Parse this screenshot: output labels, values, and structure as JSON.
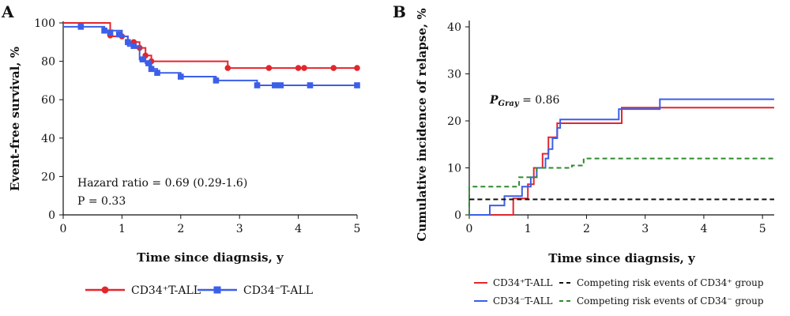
{
  "panel_a": {
    "letter": "A",
    "legend": {
      "red_label": "CD34⁺T-ALL",
      "blue_label": "CD34⁻T-ALL"
    },
    "annotations": {
      "hazard": "Hazard ratio = 0.69 (0.29-1.6)",
      "pvalue": "P = 0.33"
    }
  },
  "panel_b": {
    "letter": "B",
    "pgray_label": "P",
    "pgray_sub": "Gray",
    "pgray_value": " = 0.86",
    "legend": {
      "red_label": "CD34⁺T-ALL",
      "blue_label": "CD34⁻T-ALL",
      "black_label": "Competing risk events of CD34⁺ group",
      "green_label": "Competing risk events of CD34⁻ group"
    }
  },
  "colors": {
    "red": "#e3262d",
    "blue": "#3b5fe8",
    "black": "#111111",
    "green": "#2e8b2e"
  },
  "chart_data": [
    {
      "type": "line",
      "subtype": "kaplan-meier",
      "xlabel": "Time since diagnsis, y",
      "ylabel": "Event-free survival, %",
      "xlim": [
        0,
        5
      ],
      "ylim": [
        0,
        100
      ],
      "xticks": [
        0,
        1,
        2,
        3,
        4,
        5
      ],
      "yticks": [
        0,
        20,
        40,
        60,
        80,
        100
      ],
      "series": [
        {
          "name": "CD34⁺T-ALL",
          "color": "red",
          "steps": [
            [
              0,
              100
            ],
            [
              0.8,
              100
            ],
            [
              0.8,
              93
            ],
            [
              1.1,
              93
            ],
            [
              1.1,
              90
            ],
            [
              1.3,
              90
            ],
            [
              1.3,
              87
            ],
            [
              1.4,
              87
            ],
            [
              1.4,
              83
            ],
            [
              1.5,
              83
            ],
            [
              1.5,
              80
            ],
            [
              2.8,
              80
            ],
            [
              2.8,
              76.5
            ],
            [
              5,
              76.5
            ]
          ],
          "censored": [
            [
              0.8,
              93.5
            ],
            [
              1.0,
              93
            ],
            [
              1.2,
              90
            ],
            [
              1.3,
              87
            ],
            [
              1.4,
              83
            ],
            [
              1.5,
              80
            ],
            [
              2.8,
              76.5
            ],
            [
              3.5,
              76.5
            ],
            [
              4.0,
              76.5
            ],
            [
              4.1,
              76.5
            ],
            [
              4.6,
              76.5
            ],
            [
              5.0,
              76.5
            ]
          ]
        },
        {
          "name": "CD34⁻T-ALL",
          "color": "blue",
          "steps": [
            [
              0,
              98
            ],
            [
              0.7,
              98
            ],
            [
              0.7,
              96
            ],
            [
              1.0,
              96
            ],
            [
              1.0,
              93
            ],
            [
              1.1,
              93
            ],
            [
              1.1,
              88
            ],
            [
              1.3,
              88
            ],
            [
              1.3,
              81
            ],
            [
              1.4,
              81
            ],
            [
              1.4,
              79
            ],
            [
              1.5,
              79
            ],
            [
              1.5,
              76
            ],
            [
              1.6,
              76
            ],
            [
              1.6,
              74
            ],
            [
              2.0,
              74
            ],
            [
              2.0,
              72
            ],
            [
              2.6,
              72
            ],
            [
              2.6,
              70
            ],
            [
              3.3,
              70
            ],
            [
              3.3,
              67.5
            ],
            [
              5,
              67.5
            ]
          ],
          "censored": [
            [
              0.3,
              98
            ],
            [
              0.7,
              96
            ],
            [
              0.8,
              95
            ],
            [
              0.95,
              94
            ],
            [
              1.1,
              90
            ],
            [
              1.2,
              88
            ],
            [
              1.35,
              81
            ],
            [
              1.45,
              79
            ],
            [
              1.5,
              76
            ],
            [
              1.6,
              74
            ],
            [
              2.0,
              72
            ],
            [
              2.6,
              70
            ],
            [
              3.3,
              67.5
            ],
            [
              3.6,
              67.5
            ],
            [
              3.7,
              67.5
            ],
            [
              4.2,
              67.5
            ],
            [
              5.0,
              67.5
            ]
          ]
        }
      ]
    },
    {
      "type": "line",
      "subtype": "cumulative-incidence",
      "xlabel": "Time since diagnsis, y",
      "ylabel": "Cumulative incidence of relapse, %",
      "xlim": [
        0,
        5.2
      ],
      "ylim": [
        0,
        40
      ],
      "xticks": [
        0,
        1,
        2,
        3,
        4,
        5
      ],
      "yticks": [
        0,
        10,
        20,
        30,
        40
      ],
      "series": [
        {
          "name": "CD34⁺T-ALL",
          "color": "red",
          "dash": false,
          "steps": [
            [
              0,
              0
            ],
            [
              0.75,
              0
            ],
            [
              0.75,
              3.5
            ],
            [
              1.0,
              3.5
            ],
            [
              1.0,
              6.5
            ],
            [
              1.1,
              6.5
            ],
            [
              1.1,
              10
            ],
            [
              1.25,
              10
            ],
            [
              1.25,
              13
            ],
            [
              1.35,
              13
            ],
            [
              1.35,
              16.5
            ],
            [
              1.5,
              16.5
            ],
            [
              1.5,
              19.5
            ],
            [
              2.6,
              19.5
            ],
            [
              2.6,
              22.8
            ],
            [
              5.2,
              22.8
            ]
          ]
        },
        {
          "name": "CD34⁻T-ALL",
          "color": "blue",
          "dash": false,
          "steps": [
            [
              0,
              0
            ],
            [
              0.35,
              0
            ],
            [
              0.35,
              2
            ],
            [
              0.6,
              2
            ],
            [
              0.6,
              4
            ],
            [
              0.9,
              4
            ],
            [
              0.9,
              6
            ],
            [
              1.05,
              6
            ],
            [
              1.05,
              8
            ],
            [
              1.15,
              8
            ],
            [
              1.15,
              10
            ],
            [
              1.3,
              10
            ],
            [
              1.3,
              12
            ],
            [
              1.35,
              12
            ],
            [
              1.35,
              14
            ],
            [
              1.42,
              14
            ],
            [
              1.42,
              16.3
            ],
            [
              1.5,
              16.3
            ],
            [
              1.5,
              18.5
            ],
            [
              1.55,
              18.5
            ],
            [
              1.55,
              20.3
            ],
            [
              2.55,
              20.3
            ],
            [
              2.55,
              22.5
            ],
            [
              3.25,
              22.5
            ],
            [
              3.25,
              24.6
            ],
            [
              5.2,
              24.6
            ]
          ]
        },
        {
          "name": "Competing risk events of CD34⁺ group",
          "color": "black",
          "dash": true,
          "steps": [
            [
              0,
              0
            ],
            [
              0,
              3.3
            ],
            [
              5.2,
              3.3
            ]
          ]
        },
        {
          "name": "Competing risk events of CD34⁻ group",
          "color": "green",
          "dash": true,
          "steps": [
            [
              0,
              0
            ],
            [
              0,
              6
            ],
            [
              0.85,
              6
            ],
            [
              0.85,
              8
            ],
            [
              1.15,
              8
            ],
            [
              1.15,
              10
            ],
            [
              1.75,
              10
            ],
            [
              1.75,
              10.5
            ],
            [
              1.95,
              10.5
            ],
            [
              1.95,
              12
            ],
            [
              5.2,
              12
            ]
          ]
        }
      ]
    }
  ]
}
